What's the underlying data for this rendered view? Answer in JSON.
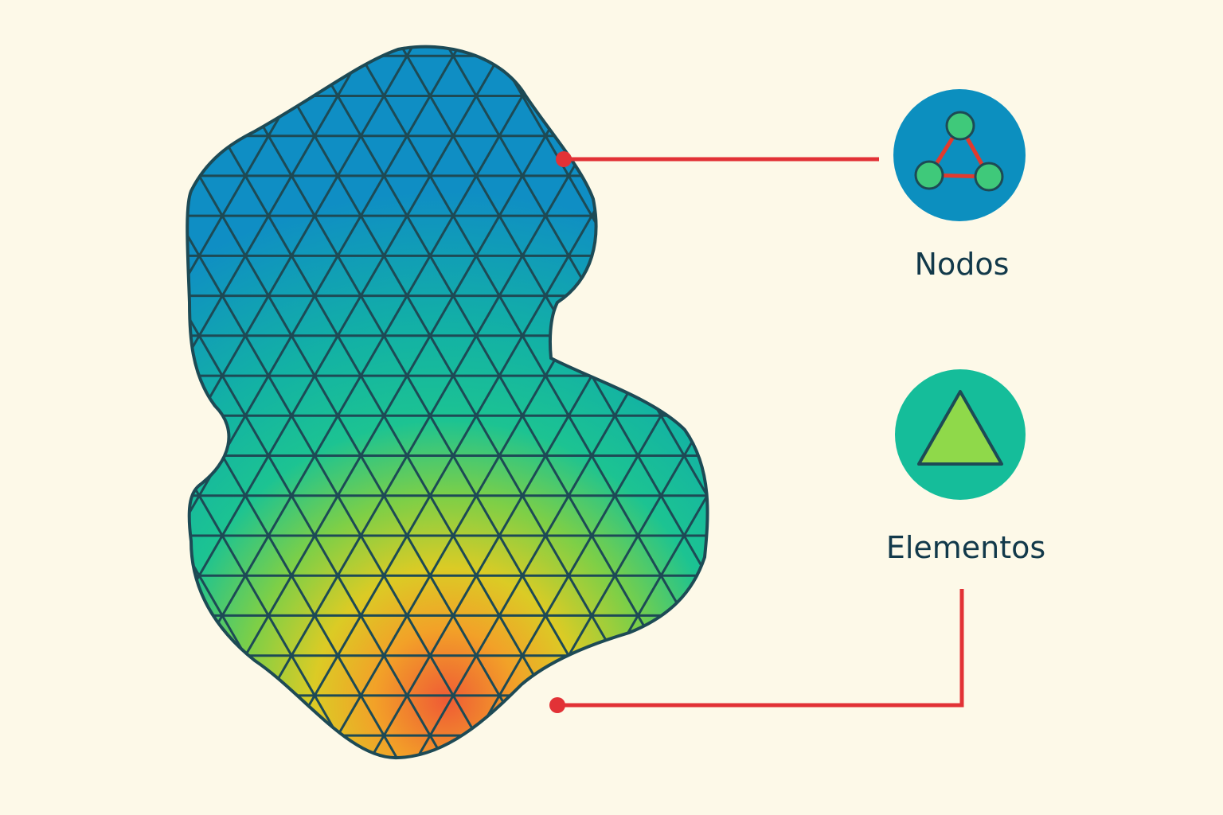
{
  "legend": {
    "nodes": {
      "label": "Nodos",
      "icon": "nodes-graph-icon",
      "bg_color": "#0c8fbf",
      "node_color": "#3fc97a",
      "edge_color": "#e23a2e"
    },
    "elements": {
      "label": "Elementos",
      "icon": "triangle-element-icon",
      "bg_color": "#15bd9a",
      "triangle_color": "#8fd94a"
    }
  },
  "mesh": {
    "outline_color": "#1d4a55",
    "gradient_colors": [
      "#0f8ec4",
      "#13b2a4",
      "#1cc392",
      "#7dcf47",
      "#dbcb25",
      "#f2a128",
      "#ef5b35"
    ]
  },
  "connector_color": "#e23236"
}
